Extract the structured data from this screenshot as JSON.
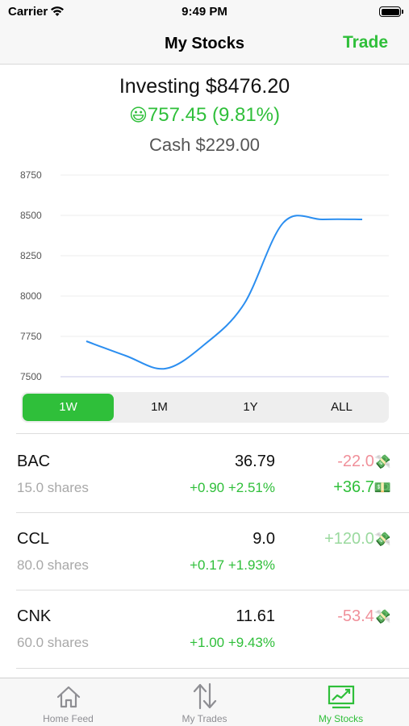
{
  "status_bar": {
    "carrier": "Carrier",
    "time": "9:49 PM"
  },
  "nav": {
    "title": "My Stocks",
    "trade_label": "Trade"
  },
  "summary": {
    "investing": "Investing $8476.20",
    "gain_emoji": "😃",
    "gain": "757.45 (9.81%)",
    "cash": "Cash $229.00"
  },
  "colors": {
    "accent": "#2fbf3a",
    "line": "#2b8ef0",
    "negative": "#f0909a"
  },
  "chart_data": {
    "type": "line",
    "x": [
      0,
      1,
      2,
      3,
      4,
      5,
      6,
      7
    ],
    "values": [
      7720,
      7630,
      7550,
      7700,
      7950,
      8455,
      8475,
      8475
    ],
    "ylim": [
      7500,
      8750
    ],
    "y_ticks": [
      "8750",
      "8500",
      "8250",
      "8000",
      "7750",
      "7500"
    ],
    "grid": true
  },
  "range_tabs": [
    "1W",
    "1M",
    "1Y",
    "ALL"
  ],
  "holdings": [
    {
      "ticker": "BAC",
      "shares": "15.0 shares",
      "price": "36.79",
      "change": "+0.90 +2.51%",
      "pl": "-22.0",
      "pl_icon": "💸",
      "pl2": "+36.7",
      "pl2_icon": "💵"
    },
    {
      "ticker": "CCL",
      "shares": "80.0 shares",
      "price": "9.0",
      "change": "+0.17 +1.93%",
      "pl": "+120.0",
      "pl_icon": "💸"
    },
    {
      "ticker": "CNK",
      "shares": "60.0 shares",
      "price": "11.61",
      "change": "+1.00 +9.43%",
      "pl": "-53.4",
      "pl_icon": "💸"
    }
  ],
  "tabs": [
    {
      "label": "Home Feed",
      "icon": "home-icon"
    },
    {
      "label": "My Trades",
      "icon": "trades-arrows-icon"
    },
    {
      "label": "My Stocks",
      "icon": "stocks-chart-icon"
    }
  ]
}
